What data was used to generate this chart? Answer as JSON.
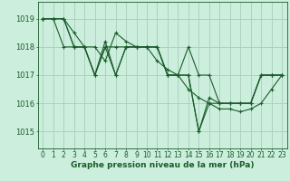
{
  "background_color": "#cceedd",
  "grid_color": "#aaccbb",
  "line_color": "#1a5c2a",
  "marker_color": "#1a5c2a",
  "xlabel": "Graphe pression niveau de la mer (hPa)",
  "xlabel_fontsize": 6.5,
  "ylabel_fontsize": 6,
  "tick_fontsize": 5.5,
  "xlim": [
    -0.5,
    23.5
  ],
  "ylim": [
    1014.4,
    1019.6
  ],
  "yticks": [
    1015,
    1016,
    1017,
    1018,
    1019
  ],
  "xticks": [
    0,
    1,
    2,
    3,
    4,
    5,
    6,
    7,
    8,
    9,
    10,
    11,
    12,
    13,
    14,
    15,
    16,
    17,
    18,
    19,
    20,
    21,
    22,
    23
  ],
  "series": [
    [
      1019.0,
      1019.0,
      1019.0,
      1018.0,
      1018.0,
      1017.0,
      1018.0,
      1018.0,
      1018.0,
      1018.0,
      1018.0,
      1018.0,
      1017.0,
      1017.0,
      1018.0,
      1017.0,
      1017.0,
      1016.0,
      1016.0,
      1016.0,
      1016.0,
      1017.0,
      1017.0,
      1017.0
    ],
    [
      1019.0,
      1019.0,
      1018.0,
      1018.0,
      1018.0,
      1017.0,
      1018.2,
      1017.0,
      1018.0,
      1018.0,
      1018.0,
      1018.0,
      1017.0,
      1017.0,
      1017.0,
      1015.0,
      1016.2,
      1016.0,
      1016.0,
      1016.0,
      1016.0,
      1017.0,
      1017.0,
      1017.0
    ],
    [
      1019.0,
      1019.0,
      1019.0,
      1018.0,
      1018.0,
      1017.0,
      1018.0,
      1017.0,
      1018.0,
      1018.0,
      1018.0,
      1018.0,
      1017.0,
      1017.0,
      1017.0,
      1015.0,
      1016.0,
      1016.0,
      1016.0,
      1016.0,
      1016.0,
      1017.0,
      1017.0,
      1017.0
    ],
    [
      1019.0,
      1019.0,
      1019.0,
      1018.5,
      1018.0,
      1018.0,
      1017.5,
      1018.5,
      1018.2,
      1018.0,
      1018.0,
      1017.5,
      1017.2,
      1017.0,
      1016.5,
      1016.2,
      1016.0,
      1015.8,
      1015.8,
      1015.7,
      1015.8,
      1016.0,
      1016.5,
      1017.0
    ]
  ]
}
